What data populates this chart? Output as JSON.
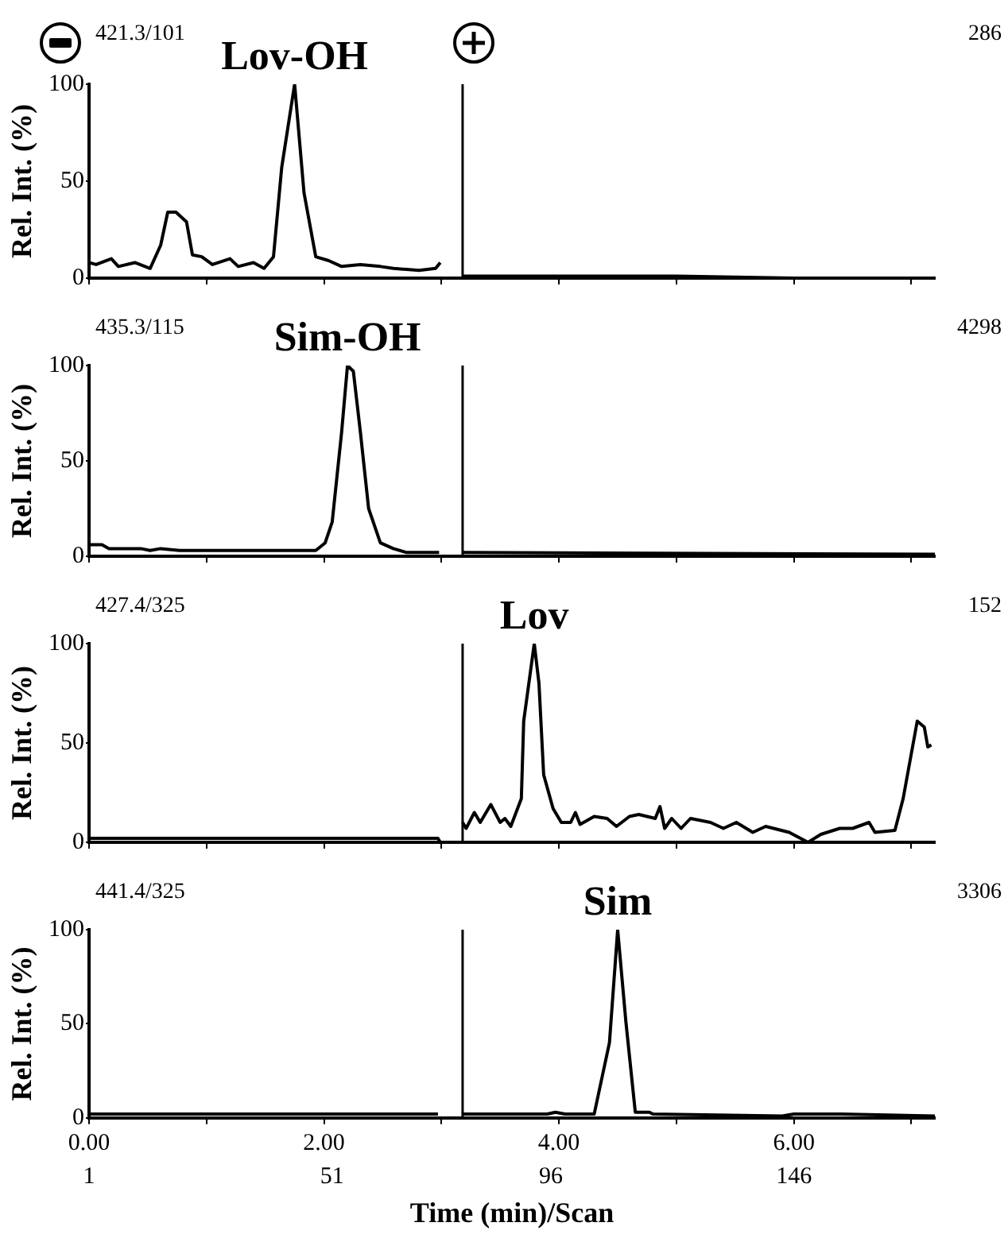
{
  "chart_data": [
    {
      "type": "line",
      "ylabel": "Rel. Int. (%)",
      "annotations": [
        {
          "text": "Lov-OH",
          "x": 1.75,
          "y": 100
        },
        "421.3/101",
        "286"
      ],
      "xlim": [
        0,
        7.2
      ],
      "ylim": [
        0,
        100
      ],
      "yticks": [
        0,
        50,
        100
      ],
      "xticks": [
        {
          "value": 0,
          "label": null
        },
        {
          "value": 1,
          "label": null
        },
        {
          "value": 2,
          "label": null
        },
        {
          "value": 3,
          "label": null
        },
        {
          "value": 4,
          "label": null
        },
        {
          "value": 5,
          "label": null
        },
        {
          "value": 6,
          "label": null
        },
        {
          "value": 7,
          "label": null
        }
      ],
      "tick_labels": "y",
      "grid": false,
      "legend": false,
      "marker": "none",
      "line_style": "solid",
      "ref_lines": [
        {
          "axis": "x",
          "value": 3.18
        }
      ],
      "series": [
        {
          "color": "#000000",
          "x": [
            0,
            0.06,
            0.19,
            0.25,
            0.39,
            0.52,
            0.61,
            0.67,
            0.74,
            0.83,
            0.88,
            0.96,
            1.05,
            1.2,
            1.27,
            1.4,
            1.49,
            1.57,
            1.64,
            1.75,
            1.83,
            1.93,
            2.04,
            2.15,
            2.31,
            2.48,
            2.59,
            2.81,
            2.95,
            2.99,
            3.1,
            3.18,
            4,
            5,
            6,
            7.2
          ],
          "values": [
            8,
            7,
            10,
            6,
            8,
            5,
            17,
            34,
            34,
            29,
            12,
            11,
            7,
            10,
            6,
            8,
            5,
            11,
            57,
            100,
            44,
            11,
            9,
            6,
            7,
            6,
            5,
            4,
            5,
            8,
            null,
            1,
            1,
            1,
            0,
            0
          ]
        }
      ]
    },
    {
      "type": "line",
      "ylabel": "Rel. Int. (%)",
      "annotations": [
        {
          "text": "Sim-OH",
          "x": 2.2,
          "y": 100
        },
        "435.3/115",
        "4298"
      ],
      "xlim": [
        0,
        7.2
      ],
      "ylim": [
        0,
        100
      ],
      "yticks": [
        0,
        50,
        100
      ],
      "xticks": [
        {
          "value": 0,
          "label": null
        },
        {
          "value": 1,
          "label": null
        },
        {
          "value": 2,
          "label": null
        },
        {
          "value": 3,
          "label": null
        },
        {
          "value": 4,
          "label": null
        },
        {
          "value": 5,
          "label": null
        },
        {
          "value": 6,
          "label": null
        },
        {
          "value": 7,
          "label": null
        }
      ],
      "tick_labels": "y",
      "grid": false,
      "legend": false,
      "marker": "none",
      "line_style": "solid",
      "ref_lines": [
        {
          "axis": "x",
          "value": 3.18
        }
      ],
      "series": [
        {
          "color": "#000000",
          "x": [
            0,
            0.11,
            0.17,
            0.44,
            0.52,
            0.61,
            0.77,
            1.93,
            2.01,
            2.07,
            2.15,
            2.2,
            2.25,
            2.31,
            2.38,
            2.48,
            2.59,
            2.7,
            2.98,
            3.1,
            3.18,
            7.2
          ],
          "values": [
            6,
            6,
            4,
            4,
            3,
            4,
            3,
            3,
            7,
            18,
            65,
            100,
            97,
            65,
            25,
            7,
            4,
            2,
            2,
            null,
            2,
            1
          ]
        }
      ]
    },
    {
      "type": "line",
      "ylabel": "Rel. Int. (%)",
      "annotations": [
        {
          "text": "Lov",
          "x": 3.79,
          "y": 100
        },
        "427.4/325",
        "152"
      ],
      "xlim": [
        0,
        7.2
      ],
      "ylim": [
        0,
        100
      ],
      "yticks": [
        0,
        50,
        100
      ],
      "xticks": [
        {
          "value": 0,
          "label": null
        },
        {
          "value": 1,
          "label": null
        },
        {
          "value": 2,
          "label": null
        },
        {
          "value": 3,
          "label": null
        },
        {
          "value": 4,
          "label": null
        },
        {
          "value": 5,
          "label": null
        },
        {
          "value": 6,
          "label": null
        },
        {
          "value": 7,
          "label": null
        }
      ],
      "tick_labels": "y",
      "grid": false,
      "legend": false,
      "marker": "none",
      "line_style": "solid",
      "ref_lines": [
        {
          "axis": "x",
          "value": 3.18
        }
      ],
      "series": [
        {
          "color": "#000000",
          "x": [
            0,
            2.97,
            2.99,
            3.1,
            3.18,
            3.21,
            3.28,
            3.33,
            3.42,
            3.5,
            3.54,
            3.59,
            3.68,
            3.7,
            3.79,
            3.83,
            3.87,
            3.95,
            4.02,
            4.1,
            4.14,
            4.18,
            4.3,
            4.41,
            4.49,
            4.6,
            4.68,
            4.82,
            4.86,
            4.9,
            4.96,
            5.04,
            5.12,
            5.29,
            5.4,
            5.51,
            5.65,
            5.76,
            5.96,
            6.12,
            6.23,
            6.39,
            6.5,
            6.64,
            6.69,
            6.86,
            6.93,
            7.05,
            7.11,
            7.14,
            7.17
          ],
          "values": [
            2,
            2,
            0,
            null,
            10,
            7,
            15,
            10,
            19,
            10,
            12,
            8,
            22,
            61,
            100,
            80,
            34,
            17,
            10,
            10,
            15,
            9,
            13,
            12,
            8,
            13,
            14,
            12,
            18,
            7,
            12,
            7,
            12,
            10,
            7,
            10,
            5,
            8,
            5,
            0,
            4,
            7,
            7,
            10,
            5,
            6,
            22,
            61,
            58,
            48,
            49
          ]
        }
      ]
    },
    {
      "type": "line",
      "ylabel": "Rel. Int. (%)",
      "xlabel": "Time (min)/Scan",
      "annotations": [
        {
          "text": "Sim",
          "x": 4.5,
          "y": 100
        },
        "441.4/325",
        "3306"
      ],
      "xlim": [
        0,
        7.2
      ],
      "ylim": [
        0,
        100
      ],
      "yticks": [
        0,
        50,
        100
      ],
      "xticks": [
        {
          "value": 0,
          "label": "0.00"
        },
        {
          "value": 1,
          "label": null
        },
        {
          "value": 2,
          "label": "2.00"
        },
        {
          "value": 3,
          "label": null
        },
        {
          "value": 4,
          "label": "4.00"
        },
        {
          "value": 5,
          "label": null
        },
        {
          "value": 6,
          "label": "6.00"
        },
        {
          "value": 7,
          "label": null
        }
      ],
      "x2lim": [
        1,
        175
      ],
      "x2ticks": [
        1,
        51,
        96,
        146
      ],
      "grid": false,
      "legend": false,
      "marker": "none",
      "line_style": "solid",
      "ref_lines": [
        {
          "axis": "x",
          "value": 3.18
        }
      ],
      "series": [
        {
          "color": "#000000",
          "x": [
            0,
            2.97,
            3.1,
            3.18,
            3.9,
            3.97,
            4.05,
            4.3,
            4.43,
            4.5,
            4.57,
            4.65,
            4.77,
            4.8,
            5.9,
            6,
            6.4,
            7.2
          ],
          "values": [
            2,
            2,
            null,
            2,
            2,
            3,
            2,
            2,
            40,
            100,
            51,
            3,
            3,
            2,
            1,
            2,
            2,
            1
          ]
        }
      ]
    }
  ]
}
